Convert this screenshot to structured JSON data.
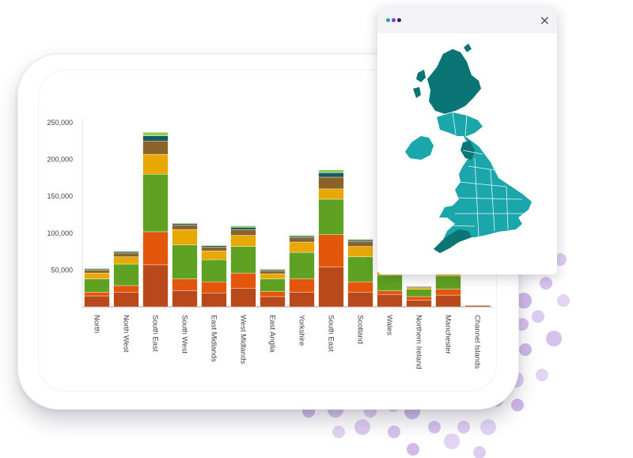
{
  "colors": {
    "accent": "#c2a2e3",
    "map_light": "#1aa6aa",
    "map_dark": "#0b7474",
    "series": [
      "#b9491a",
      "#e2570b",
      "#5fa122",
      "#e8a805",
      "#8b6328",
      "#175b69",
      "#8fcf56"
    ]
  },
  "map_window": {
    "close_label": "×",
    "dot_colors": [
      "#18a7a8",
      "#7b3fbf",
      "#3a1f58"
    ]
  },
  "chart_data": {
    "type": "bar",
    "stacked": true,
    "ylim": [
      0,
      250000
    ],
    "yticks": [
      "250,000",
      "200,000",
      "150,000",
      "100,000",
      "50,000"
    ],
    "ytick_values": [
      250000,
      200000,
      150000,
      100000,
      50000
    ],
    "categories": [
      "North",
      "North West",
      "South East",
      "South West",
      "East Midlands",
      "West Midlands",
      "East Anglia",
      "Yorkshire",
      "South East",
      "Scotland",
      "Wales",
      "Northern Ireland",
      "Manchester",
      "Channel Islands"
    ],
    "series": [
      {
        "values": [
          15000,
          20000,
          57000,
          22000,
          19000,
          25000,
          14000,
          20000,
          54000,
          20000,
          17000,
          9000,
          16000,
          2000
        ]
      },
      {
        "values": [
          5000,
          9000,
          45000,
          16000,
          15000,
          21000,
          7000,
          18000,
          44000,
          14000,
          5000,
          5000,
          8000,
          500
        ]
      },
      {
        "values": [
          18000,
          29000,
          78000,
          46000,
          30000,
          36000,
          17000,
          36000,
          48000,
          34000,
          21000,
          10000,
          18000,
          0
        ]
      },
      {
        "values": [
          8000,
          10000,
          27000,
          21000,
          12000,
          15000,
          7000,
          14000,
          14000,
          14000,
          5000,
          2000,
          6000,
          0
        ]
      },
      {
        "values": [
          4000,
          5000,
          18000,
          6000,
          5000,
          8000,
          4000,
          6000,
          16000,
          7000,
          0,
          1500,
          5000,
          0
        ]
      },
      {
        "values": [
          1500,
          2000,
          7000,
          2000,
          2000,
          3000,
          1500,
          2000,
          6000,
          2000,
          0,
          500,
          1500,
          0
        ]
      },
      {
        "values": [
          1000,
          1000,
          5000,
          1000,
          1000,
          2000,
          1000,
          1500,
          4000,
          1000,
          0,
          500,
          500,
          0
        ]
      }
    ]
  }
}
